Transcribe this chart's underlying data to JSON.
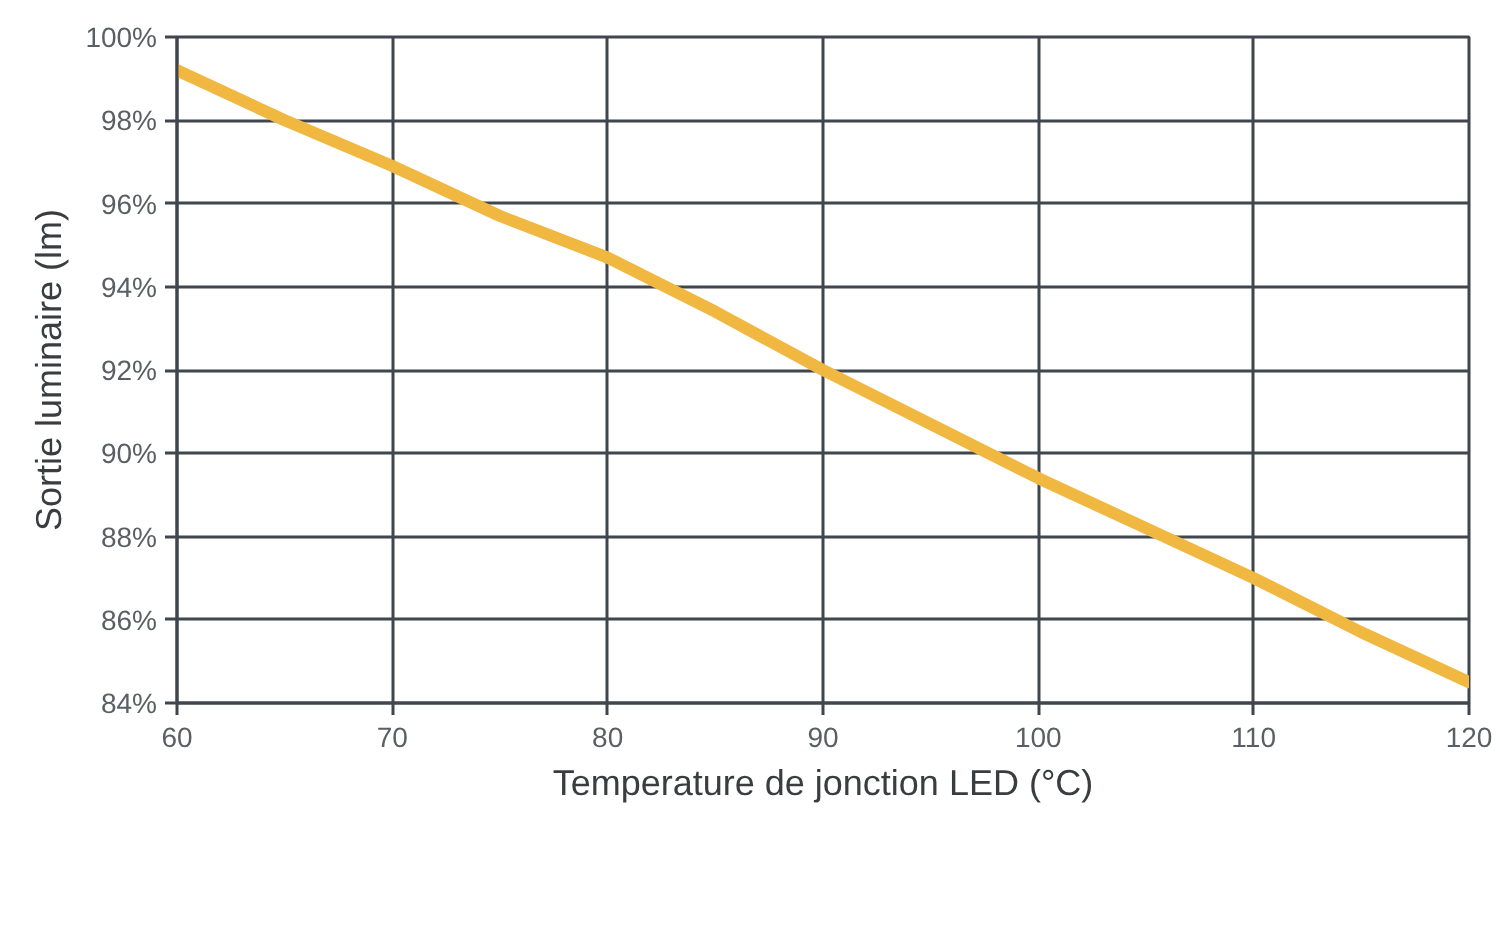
{
  "chart_data": {
    "type": "line",
    "xlabel": "Temperature de jonction LED (°C)",
    "ylabel": "Sortie luminaire (lm)",
    "x": [
      60,
      65,
      70,
      75,
      80,
      85,
      90,
      95,
      100,
      105,
      110,
      115,
      120
    ],
    "series": [
      {
        "color": "#f0b841",
        "values": [
          99.2,
          98.0,
          96.9,
          95.7,
          94.7,
          93.4,
          92.0,
          90.7,
          89.4,
          88.2,
          87.0,
          85.7,
          84.5
        ]
      }
    ],
    "xlim": [
      60,
      120
    ],
    "ylim": [
      84,
      100
    ],
    "xticks": [
      60,
      70,
      80,
      90,
      100,
      110,
      120
    ],
    "yticks": [
      {
        "value": 84,
        "label": "84%"
      },
      {
        "value": 86,
        "label": "86%"
      },
      {
        "value": 88,
        "label": "88%"
      },
      {
        "value": 90,
        "label": "90%"
      },
      {
        "value": 92,
        "label": "92%"
      },
      {
        "value": 94,
        "label": "94%"
      },
      {
        "value": 96,
        "label": "96%"
      },
      {
        "value": 98,
        "label": "98%"
      },
      {
        "value": 100,
        "label": "100%"
      }
    ],
    "grid": true,
    "line_style": "solid"
  }
}
